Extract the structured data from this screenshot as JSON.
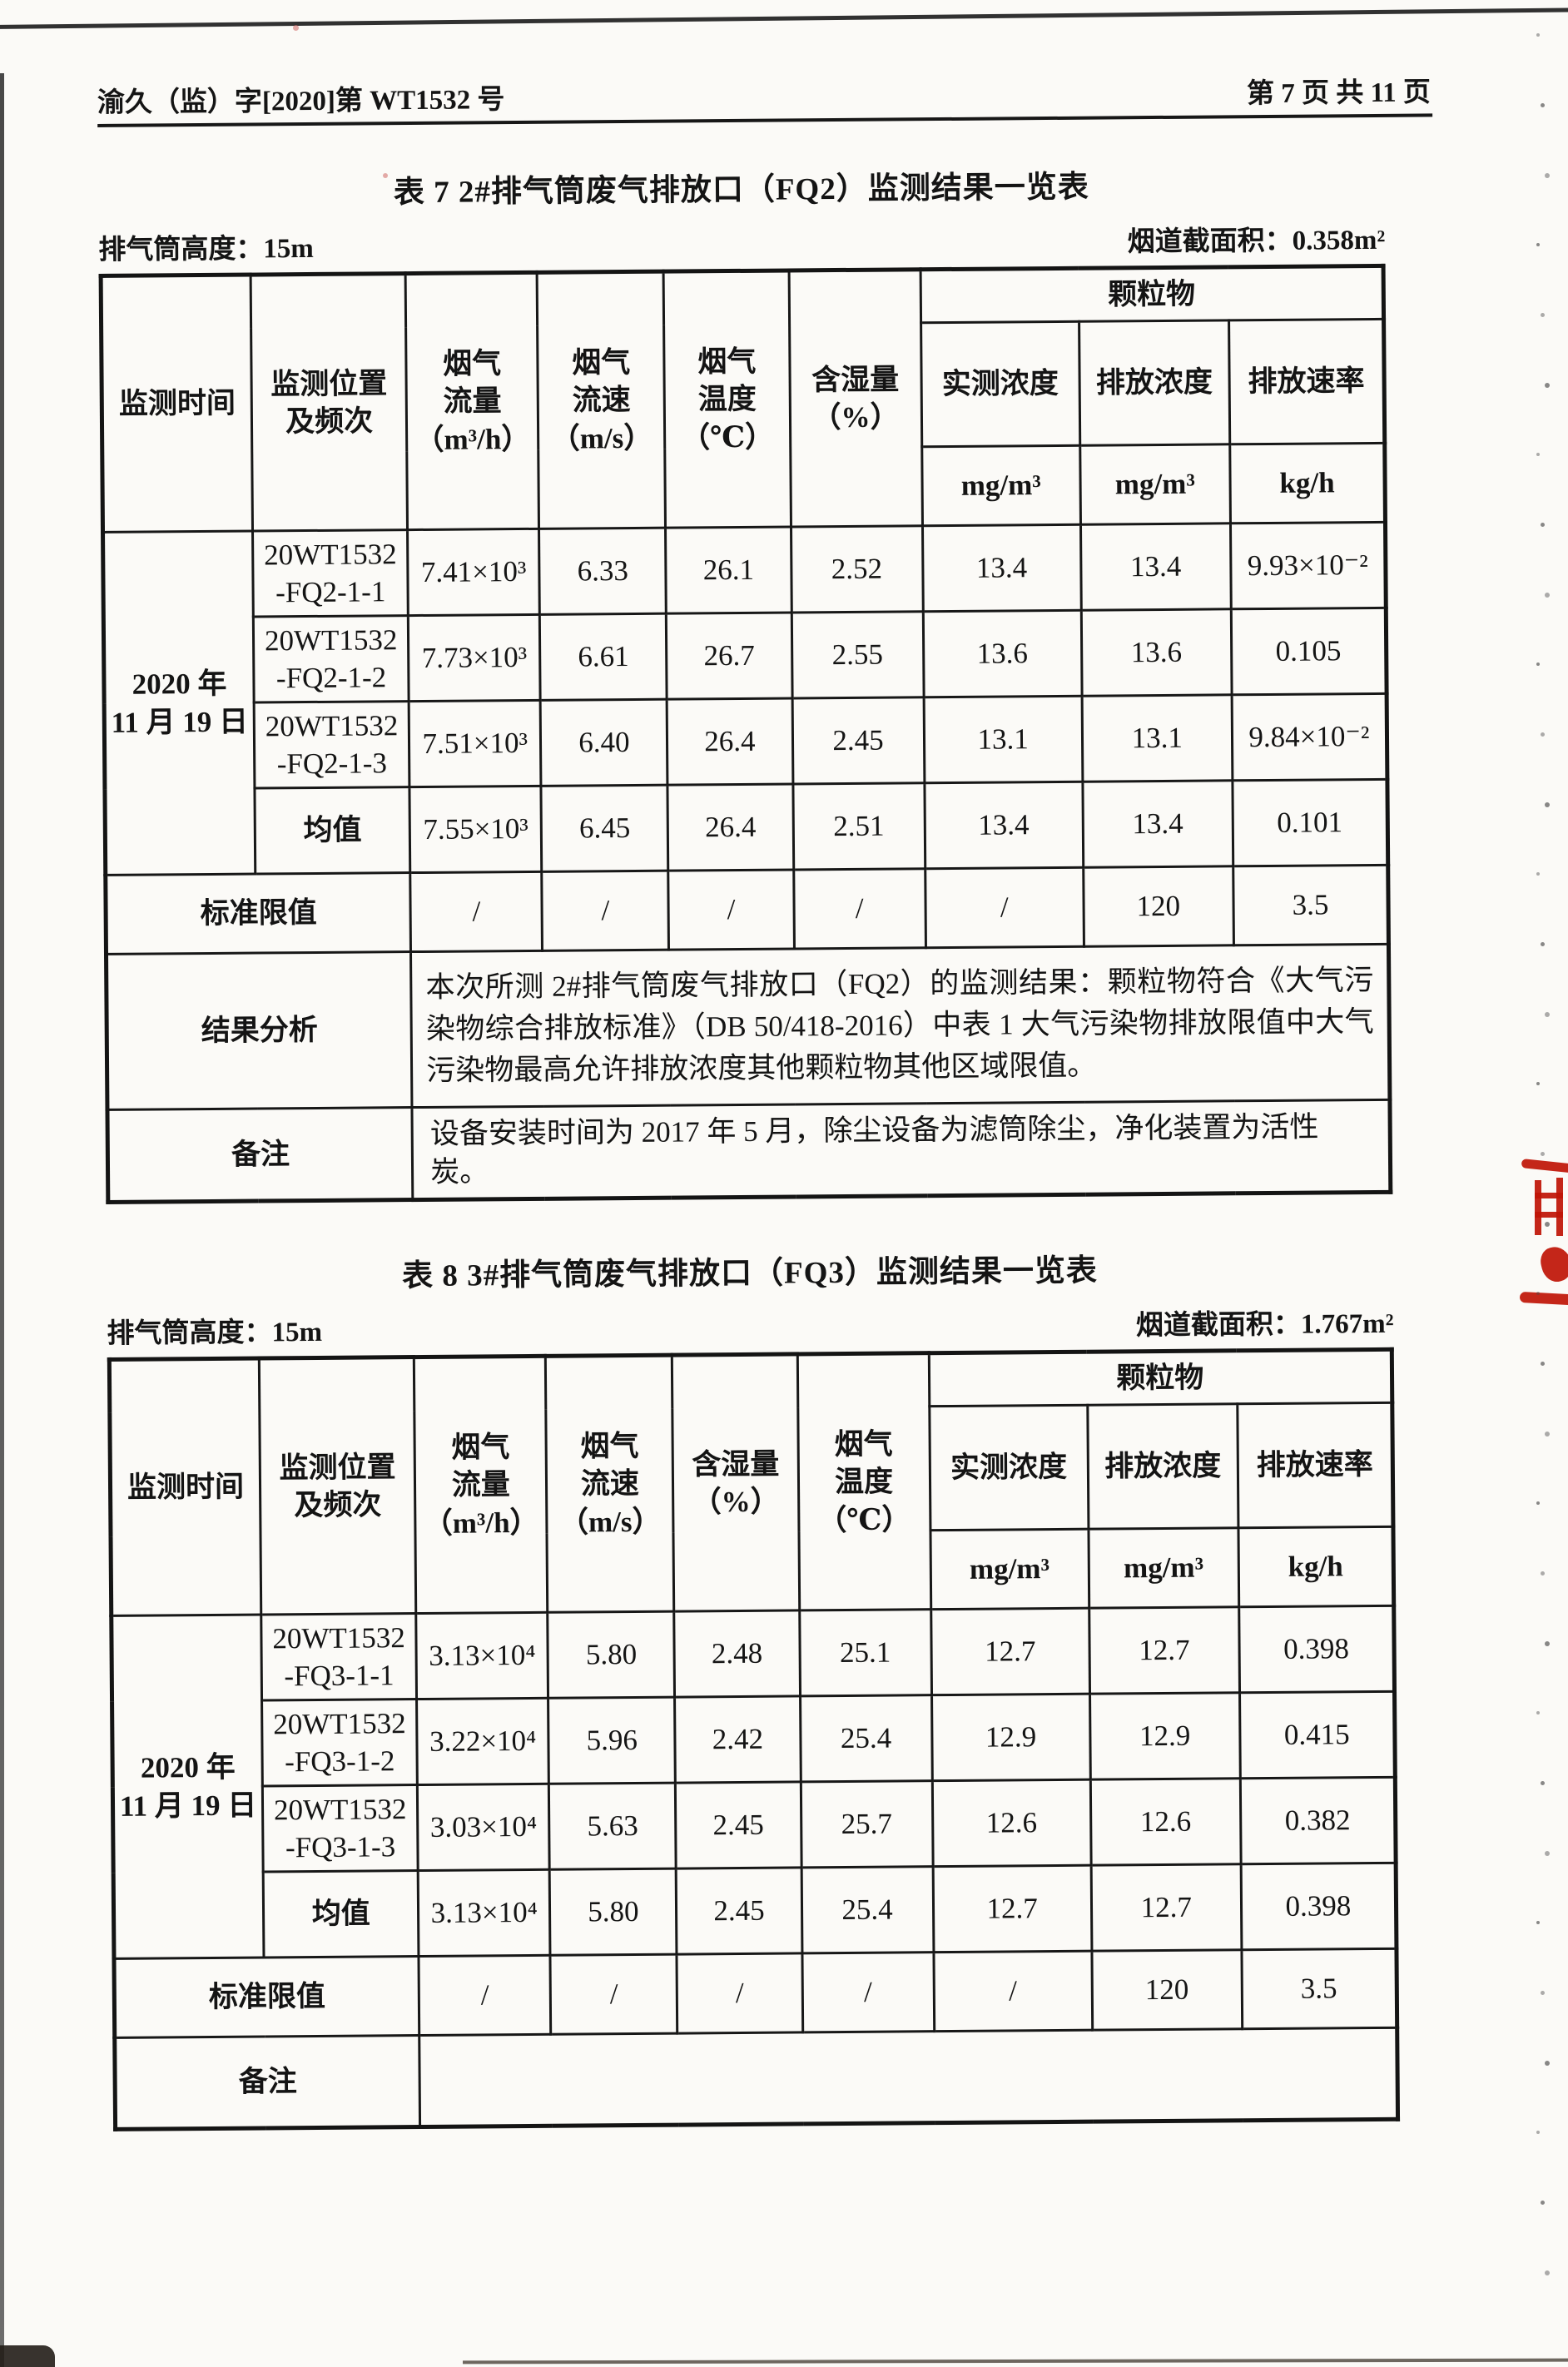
{
  "page": {
    "doc_number": "渝久（监）字[2020]第 WT1532 号",
    "page_info": "第 7 页 共 11 页"
  },
  "table7": {
    "title": "表 7   2#排气筒废气排放口（FQ2）监测结果一览表",
    "stack_height_label": "排气筒高度：15m",
    "duct_area_label": "烟道截面积：0.358m²",
    "header": {
      "col_time": "监测时间",
      "col_position": "监测位置\n及频次",
      "col_flow": "烟气\n流量\n（m³/h）",
      "col_velocity": "烟气\n流速\n（m/s）",
      "col_temp": "烟气\n温度\n（℃）",
      "col_humidity": "含湿量\n（%）",
      "col_pm_group": "颗粒物",
      "col_measured": "实测浓度",
      "col_emission_conc": "排放浓度",
      "col_emission_rate": "排放速率",
      "unit_measured": "mg/m³",
      "unit_emission_conc": "mg/m³",
      "unit_emission_rate": "kg/h"
    },
    "date": "2020 年\n11 月 19 日",
    "rows": [
      [
        "20WT1532\n-FQ2-1-1",
        "7.41×10³",
        "6.33",
        "26.1",
        "2.52",
        "13.4",
        "13.4",
        "9.93×10⁻²"
      ],
      [
        "20WT1532\n-FQ2-1-2",
        "7.73×10³",
        "6.61",
        "26.7",
        "2.55",
        "13.6",
        "13.6",
        "0.105"
      ],
      [
        "20WT1532\n-FQ2-1-3",
        "7.51×10³",
        "6.40",
        "26.4",
        "2.45",
        "13.1",
        "13.1",
        "9.84×10⁻²"
      ],
      [
        "均值",
        "7.55×10³",
        "6.45",
        "26.4",
        "2.51",
        "13.4",
        "13.4",
        "0.101"
      ]
    ],
    "limit_label": "标准限值",
    "limit_values": [
      "/",
      "/",
      "/",
      "/",
      "/",
      "120",
      "3.5"
    ],
    "analysis_label": "结果分析",
    "analysis_text": "本次所测 2#排气筒废气排放口（FQ2）的监测结果：颗粒物符合《大气污染物综合排放标准》（DB 50/418-2016）中表 1 大气污染物排放限值中大气污染物最高允许排放浓度其他颗粒物其他区域限值。",
    "remark_label": "备注",
    "remark_text": "设备安装时间为 2017 年 5 月，除尘设备为滤筒除尘，净化装置为活性炭。"
  },
  "table8": {
    "title": "表 8   3#排气筒废气排放口（FQ3）监测结果一览表",
    "stack_height_label": "排气筒高度：15m",
    "duct_area_label": "烟道截面积：1.767m²",
    "header": {
      "col_time": "监测时间",
      "col_position": "监测位置\n及频次",
      "col_flow": "烟气\n流量\n（m³/h）",
      "col_velocity": "烟气\n流速\n（m/s）",
      "col_humidity": "含湿量\n（%）",
      "col_temp": "烟气\n温度\n（℃）",
      "col_pm_group": "颗粒物",
      "col_measured": "实测浓度",
      "col_emission_conc": "排放浓度",
      "col_emission_rate": "排放速率",
      "unit_measured": "mg/m³",
      "unit_emission_conc": "mg/m³",
      "unit_emission_rate": "kg/h"
    },
    "date": "2020 年\n11 月 19 日",
    "rows": [
      [
        "20WT1532\n-FQ3-1-1",
        "3.13×10⁴",
        "5.80",
        "2.48",
        "25.1",
        "12.7",
        "12.7",
        "0.398"
      ],
      [
        "20WT1532\n-FQ3-1-2",
        "3.22×10⁴",
        "5.96",
        "2.42",
        "25.4",
        "12.9",
        "12.9",
        "0.415"
      ],
      [
        "20WT1532\n-FQ3-1-3",
        "3.03×10⁴",
        "5.63",
        "2.45",
        "25.7",
        "12.6",
        "12.6",
        "0.382"
      ],
      [
        "均值",
        "3.13×10⁴",
        "5.80",
        "2.45",
        "25.4",
        "12.7",
        "12.7",
        "0.398"
      ]
    ],
    "limit_label": "标准限值",
    "limit_values": [
      "/",
      "/",
      "/",
      "/",
      "/",
      "120",
      "3.5"
    ],
    "remark_label": "备注",
    "remark_text": ""
  }
}
